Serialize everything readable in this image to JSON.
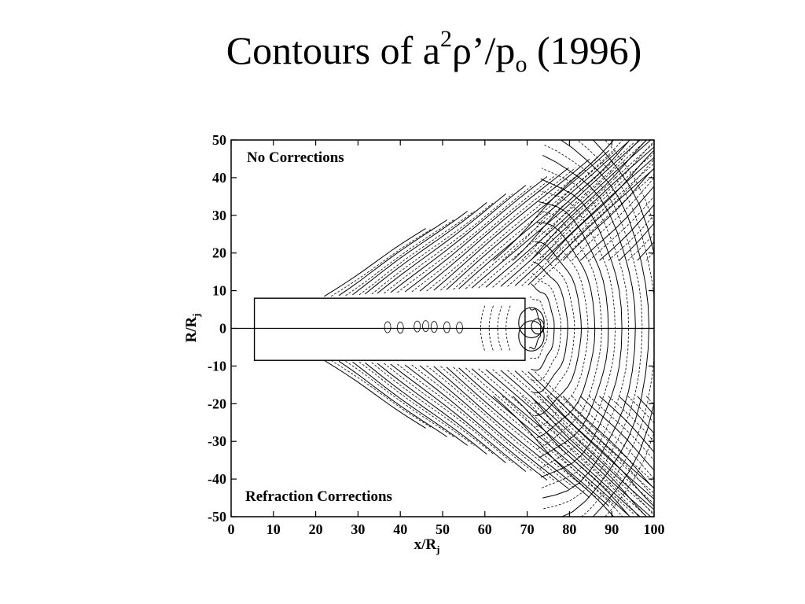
{
  "slide": {
    "title_main": "Contours of a",
    "title_sup": "2",
    "title_rho": "ρ’/p",
    "title_sub": "o",
    "title_year": " (1996)"
  },
  "chart_data": {
    "type": "contour",
    "title": "",
    "xlabel": "x/R",
    "xlabel_sub": "j",
    "ylabel": "R/R",
    "ylabel_sub": "j",
    "xlim": [
      0,
      100
    ],
    "ylim": [
      -50,
      50
    ],
    "xticks": [
      0,
      10,
      20,
      30,
      40,
      50,
      60,
      70,
      80,
      90,
      100
    ],
    "yticks": [
      50,
      40,
      30,
      20,
      10,
      0,
      -10,
      -20,
      -30,
      -40,
      -50
    ],
    "grid": false,
    "upper_panel_label": "No Corrections",
    "lower_panel_label": "Refraction Corrections",
    "nozzle_box": {
      "x": [
        5.5,
        69.5
      ],
      "r": [
        -8.5,
        8
      ]
    },
    "centerline_r": 0,
    "contour_styles": [
      "solid",
      "dashed"
    ]
  }
}
